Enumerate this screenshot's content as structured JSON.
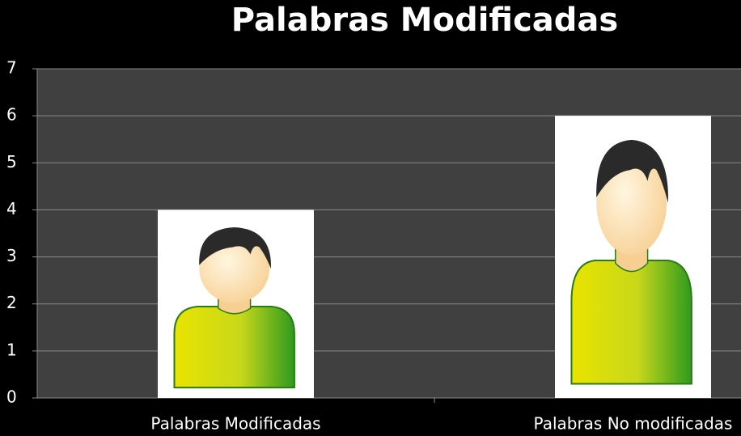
{
  "chart_data": {
    "type": "bar",
    "title": "Palabras Modificadas",
    "categories": [
      "Palabras Modificadas",
      "Palabras No modificadas"
    ],
    "values": [
      4,
      6
    ],
    "color": "#ffffff",
    "ylim": [
      0,
      7
    ],
    "yticks": [
      0,
      1,
      2,
      3,
      4,
      5,
      6,
      7
    ],
    "grid": true
  }
}
